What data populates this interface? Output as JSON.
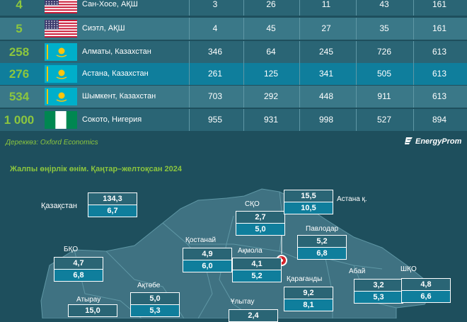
{
  "table": {
    "rows": [
      {
        "rank": "4",
        "flag": "us",
        "city": "Сан-Хосе, АҚШ",
        "values": [
          "3",
          "26",
          "11",
          "43",
          "161"
        ],
        "style": "normal"
      },
      {
        "rank": "5",
        "flag": "us",
        "city": "Сиэтл, АҚШ",
        "values": [
          "4",
          "45",
          "27",
          "35",
          "161"
        ],
        "style": "alt"
      },
      {
        "rank": "258",
        "flag": "kz",
        "city": "Алматы, Казахстан",
        "values": [
          "346",
          "64",
          "245",
          "726",
          "613"
        ],
        "style": "normal"
      },
      {
        "rank": "276",
        "flag": "kz",
        "city": "Астана, Казахстан",
        "values": [
          "261",
          "125",
          "341",
          "505",
          "613"
        ],
        "style": "hl"
      },
      {
        "rank": "534",
        "flag": "kz",
        "city": "Шымкент, Казахстан",
        "values": [
          "703",
          "292",
          "448",
          "911",
          "613"
        ],
        "style": "alt"
      },
      {
        "rank": "1 000",
        "flag": "ng",
        "city": "Сокото, Нигерия",
        "values": [
          "955",
          "931",
          "998",
          "527",
          "894"
        ],
        "style": "normal"
      }
    ]
  },
  "source": "Дереккөз: Oxford Economics",
  "logo": "EnergyProm",
  "section_title": "Жалпы өңірлік өнім. Қаңтар–желтоқсан 2024",
  "colors": {
    "accent": "#8cc63e",
    "background": "#1e4f5d",
    "row": "#2a6575",
    "highlight": "#0f7e9c",
    "map_fill": "#3f7282"
  },
  "map": {
    "country_label": "Қазақстан",
    "country_values": [
      "134,3",
      "6,7"
    ],
    "capital_icon": "location-pin-icon",
    "regions": [
      {
        "key": "sko",
        "name": "СҚО",
        "v1": "2,7",
        "v2": "5,0"
      },
      {
        "key": "astana",
        "name": "Астана қ.",
        "v1": "15,5",
        "v2": "10,5"
      },
      {
        "key": "pavlodar",
        "name": "Павлодар",
        "v1": "5,2",
        "v2": "6,8"
      },
      {
        "key": "kostanay",
        "name": "Қостанай",
        "v1": "4,9",
        "v2": "6,0"
      },
      {
        "key": "akmola",
        "name": "Ақмола",
        "v1": "4,1",
        "v2": "5,2"
      },
      {
        "key": "bko",
        "name": "БҚО",
        "v1": "4,7",
        "v2": "6,8"
      },
      {
        "key": "abai",
        "name": "Абай",
        "v1": "3,2",
        "v2": "5,3"
      },
      {
        "key": "shko",
        "name": "ШҚО",
        "v1": "4,8",
        "v2": "6,6"
      },
      {
        "key": "aktobe",
        "name": "Ақтөбе",
        "v1": "5,0",
        "v2": "5,3"
      },
      {
        "key": "karaganda",
        "name": "Қарағанды",
        "v1": "9,2",
        "v2": "8,1"
      },
      {
        "key": "atyrau",
        "name": "Атырау",
        "v1": "15,0",
        "v2": ""
      },
      {
        "key": "ulytau",
        "name": "Ұлытау",
        "v1": "2,4",
        "v2": ""
      }
    ]
  }
}
